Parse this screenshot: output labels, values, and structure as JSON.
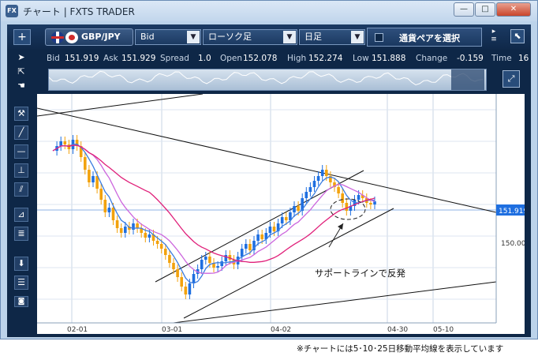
{
  "window": {
    "title": "チャート | FXTS TRADER",
    "app_icon": "FX",
    "buttons": {
      "min": "—",
      "max": "□",
      "close": "✕"
    }
  },
  "toolbar": {
    "add_label": "+",
    "pair": "GBP/JPY",
    "price_type": "Bid",
    "chart_type": "ローソク足",
    "timeframe": "日足",
    "select_pair_label": "通貨ペアを選択"
  },
  "quote": {
    "bid_label": "Bid",
    "bid": "151.919",
    "ask_label": "Ask",
    "ask": "151.929",
    "spread_label": "Spread",
    "spread": "1.0",
    "open_label": "Open",
    "open": "152.078",
    "high_label": "High",
    "high": "152.274",
    "low_label": "Low",
    "low": "151.888",
    "change_label": "Change",
    "change": "-0.159",
    "time_label": "Time",
    "time": "16"
  },
  "colors": {
    "up": "#1f6fe0",
    "down": "#f2a20c",
    "ma5": "#3b7de0",
    "ma10": "#cc66dd",
    "ma25": "#e0207a"
  },
  "chart_data": {
    "type": "candlestick",
    "current_price_label": "151.919",
    "current_price": 151.919,
    "y_tick_label": "150.000",
    "x_labels": [
      "02-01",
      "03-01",
      "04-02",
      "04-30",
      "05-10"
    ],
    "annotation": "サポートラインで反発",
    "grid": true,
    "moving_averages": [
      "MA5",
      "MA10",
      "MA25"
    ]
  },
  "caption": "※チャートには5･10･25日移動平均線を表示しています"
}
